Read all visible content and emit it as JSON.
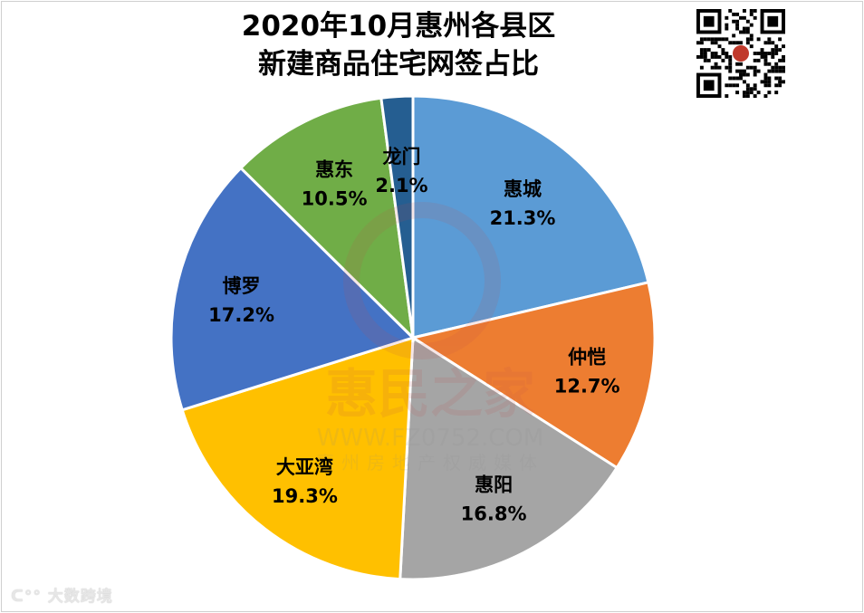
{
  "chart_data": {
    "type": "pie",
    "title_line1": "2020年10月惠州各县区",
    "title_line2": "新建商品住宅网签占比",
    "start": "12 o'clock, clockwise",
    "slices": [
      {
        "label": "惠城",
        "value": 21.3,
        "value_label": "21.3%",
        "color": "#5B9BD5"
      },
      {
        "label": "仲恺",
        "value": 12.7,
        "value_label": "12.7%",
        "color": "#ED7D31"
      },
      {
        "label": "惠阳",
        "value": 16.8,
        "value_label": "16.8%",
        "color": "#A5A5A5"
      },
      {
        "label": "大亚湾",
        "value": 19.3,
        "value_label": "19.3%",
        "color": "#FFC000"
      },
      {
        "label": "博罗",
        "value": 17.2,
        "value_label": "17.2%",
        "color": "#4472C4"
      },
      {
        "label": "惠东",
        "value": 10.5,
        "value_label": "10.5%",
        "color": "#70AD47"
      },
      {
        "label": "龙门",
        "value": 2.1,
        "value_label": "2.1%",
        "color": "#255E91"
      }
    ]
  },
  "watermark": {
    "brand": "惠民之家",
    "site": "WWW.FZ0752.COM",
    "slogan": "惠州房地产权威媒体"
  },
  "corner_logo": "大数跨境",
  "qr_icon": "qr-code-icon"
}
